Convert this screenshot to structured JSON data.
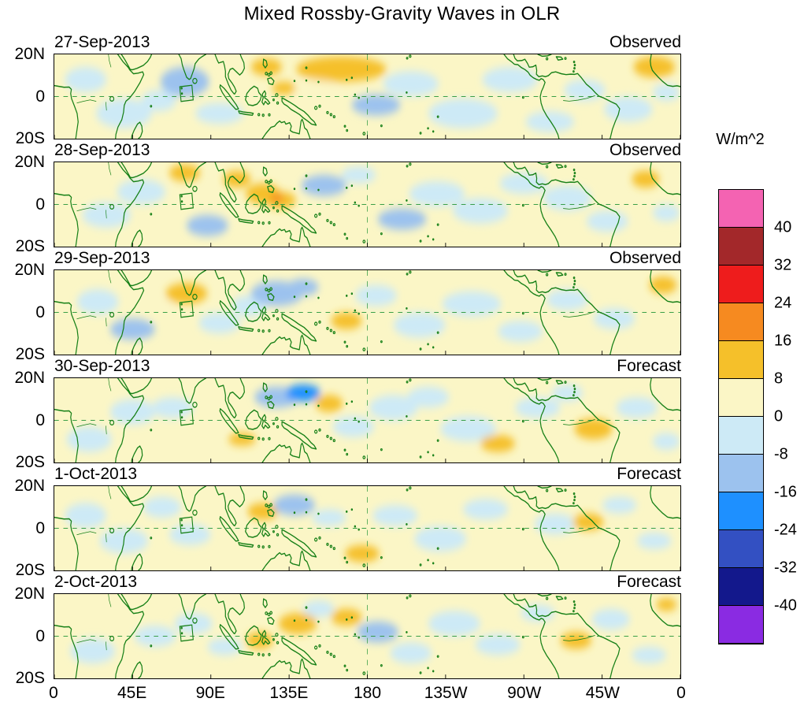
{
  "chart_data": {
    "type": "heatmap",
    "title": "Mixed Rossby-Gravity Waves in OLR",
    "units_label": "W/m^2",
    "lon_range_deg_east": [
      0,
      360
    ],
    "lat_range": [
      -20,
      20
    ],
    "x_tick_labels": [
      "0",
      "45E",
      "90E",
      "135E",
      "180",
      "135W",
      "90W",
      "45W",
      "0"
    ],
    "y_tick_labels": [
      "20N",
      "0",
      "20S"
    ],
    "contour_levels": [
      -40,
      -32,
      -24,
      -16,
      -8,
      0,
      8,
      16,
      24,
      32,
      40
    ],
    "colorbar": {
      "orientation": "vertical",
      "tick_labels_top_to_bottom": [
        "40",
        "32",
        "24",
        "16",
        "8",
        "0",
        "-8",
        "-16",
        "-24",
        "-32",
        "-40"
      ],
      "colors_top_to_bottom": [
        "#F463B2",
        "#A3282A",
        "#EE1C1C",
        "#F68A20",
        "#F5C02A",
        "#FBF6C6",
        "#CDEAF6",
        "#9CC2EE",
        "#1E90FF",
        "#3350C2",
        "#13188C",
        "#8A2BE2"
      ]
    },
    "map_colors": {
      "coastline": "#178017",
      "gridline": "#2f9a3f"
    },
    "gridlines": {
      "equator_dashed": true,
      "meridian_180_dashed": true
    },
    "region_marker_box": {
      "lon_min": 72.5,
      "lon_max": 79.5,
      "lat_min": -2,
      "lat_max": 5
    },
    "anomaly_fields_note": "anomalies = [lon_deg_east, lat_deg, radius_lon_deg, radius_lat_deg, value_W_per_m2] (approximate centers of filled-contour features)",
    "panels": [
      {
        "date": "27-Sep-2013",
        "source": "Observed",
        "anomalies": [
          [
            40,
            -8,
            16,
            7,
            -4
          ],
          [
            18,
            8,
            12,
            6,
            -4
          ],
          [
            75,
            7,
            14,
            7,
            -12
          ],
          [
            60,
            -2,
            10,
            5,
            -4
          ],
          [
            95,
            -8,
            14,
            5,
            -4
          ],
          [
            122,
            14,
            9,
            4,
            12
          ],
          [
            132,
            4,
            7,
            3,
            12
          ],
          [
            165,
            13,
            26,
            6,
            12
          ],
          [
            150,
            3,
            12,
            5,
            4
          ],
          [
            185,
            -4,
            14,
            5,
            -12
          ],
          [
            205,
            6,
            16,
            6,
            -4
          ],
          [
            235,
            -8,
            20,
            7,
            -4
          ],
          [
            262,
            8,
            16,
            6,
            -4
          ],
          [
            285,
            -12,
            14,
            5,
            -4
          ],
          [
            305,
            3,
            12,
            5,
            -4
          ],
          [
            345,
            14,
            12,
            5,
            12
          ],
          [
            330,
            -6,
            14,
            6,
            -4
          ],
          [
            352,
            2,
            8,
            4,
            -4
          ]
        ]
      },
      {
        "date": "28-Sep-2013",
        "source": "Observed",
        "anomalies": [
          [
            30,
            -5,
            14,
            6,
            -4
          ],
          [
            50,
            6,
            14,
            6,
            -4
          ],
          [
            75,
            15,
            9,
            4,
            12
          ],
          [
            88,
            -10,
            12,
            5,
            -12
          ],
          [
            105,
            12,
            8,
            4,
            12
          ],
          [
            120,
            5,
            10,
            5,
            12
          ],
          [
            130,
            2,
            9,
            4,
            12
          ],
          [
            128,
            3,
            4,
            2,
            20
          ],
          [
            155,
            9,
            13,
            5,
            -12
          ],
          [
            175,
            14,
            10,
            4,
            -4
          ],
          [
            200,
            -7,
            14,
            5,
            -12
          ],
          [
            220,
            5,
            16,
            6,
            -4
          ],
          [
            245,
            -3,
            16,
            6,
            -4
          ],
          [
            270,
            10,
            14,
            5,
            -4
          ],
          [
            295,
            3,
            14,
            6,
            -4
          ],
          [
            318,
            -8,
            12,
            5,
            -4
          ],
          [
            340,
            12,
            8,
            4,
            12
          ],
          [
            352,
            -4,
            8,
            4,
            -4
          ]
        ]
      },
      {
        "date": "29-Sep-2013",
        "source": "Observed",
        "anomalies": [
          [
            25,
            5,
            12,
            6,
            -4
          ],
          [
            45,
            -8,
            13,
            5,
            -12
          ],
          [
            60,
            2,
            9,
            4,
            4
          ],
          [
            76,
            9,
            12,
            5,
            12
          ],
          [
            95,
            -5,
            12,
            5,
            -4
          ],
          [
            112,
            3,
            10,
            5,
            -4
          ],
          [
            128,
            9,
            15,
            6,
            -12
          ],
          [
            143,
            12,
            9,
            4,
            -12
          ],
          [
            168,
            -4,
            9,
            4,
            12
          ],
          [
            185,
            8,
            12,
            5,
            -4
          ],
          [
            210,
            -6,
            15,
            6,
            -4
          ],
          [
            240,
            4,
            17,
            6,
            -4
          ],
          [
            268,
            -9,
            13,
            5,
            -4
          ],
          [
            295,
            6,
            12,
            5,
            -4
          ],
          [
            322,
            -3,
            12,
            5,
            -4
          ],
          [
            350,
            13,
            8,
            4,
            12
          ],
          [
            342,
            -13,
            9,
            4,
            4
          ]
        ]
      },
      {
        "date": "30-Sep-2013",
        "source": "Forecast",
        "anomalies": [
          [
            20,
            -9,
            13,
            6,
            -4
          ],
          [
            45,
            4,
            13,
            6,
            -4
          ],
          [
            68,
            6,
            12,
            5,
            -4
          ],
          [
            90,
            0,
            10,
            4,
            4
          ],
          [
            108,
            -9,
            8,
            3,
            12
          ],
          [
            128,
            11,
            13,
            5,
            -12
          ],
          [
            143,
            13,
            10,
            4,
            -20
          ],
          [
            158,
            8,
            8,
            4,
            12
          ],
          [
            172,
            -3,
            12,
            5,
            -4
          ],
          [
            195,
            6,
            14,
            6,
            -4
          ],
          [
            215,
            11,
            12,
            5,
            -4
          ],
          [
            238,
            -4,
            16,
            6,
            -4
          ],
          [
            255,
            -11,
            10,
            4,
            12
          ],
          [
            278,
            6,
            13,
            5,
            -4
          ],
          [
            310,
            -4,
            11,
            5,
            12
          ],
          [
            295,
            13,
            9,
            4,
            -4
          ],
          [
            335,
            6,
            12,
            5,
            -4
          ],
          [
            352,
            -10,
            8,
            4,
            -4
          ]
        ]
      },
      {
        "date": "1-Oct-2013",
        "source": "Forecast",
        "anomalies": [
          [
            18,
            6,
            12,
            6,
            -4
          ],
          [
            40,
            -6,
            14,
            6,
            -4
          ],
          [
            62,
            10,
            11,
            5,
            -4
          ],
          [
            78,
            -3,
            12,
            5,
            -4
          ],
          [
            97,
            4,
            10,
            4,
            4
          ],
          [
            120,
            8,
            9,
            4,
            12
          ],
          [
            138,
            11,
            12,
            5,
            -12
          ],
          [
            158,
            5,
            10,
            4,
            -4
          ],
          [
            177,
            -12,
            10,
            4,
            12
          ],
          [
            196,
            6,
            13,
            5,
            -4
          ],
          [
            222,
            -5,
            15,
            6,
            -4
          ],
          [
            248,
            9,
            13,
            5,
            -4
          ],
          [
            270,
            -10,
            11,
            4,
            4
          ],
          [
            288,
            2,
            12,
            5,
            -4
          ],
          [
            307,
            3,
            9,
            4,
            12
          ],
          [
            325,
            11,
            10,
            4,
            -4
          ],
          [
            345,
            -6,
            10,
            4,
            -4
          ]
        ]
      },
      {
        "date": "2-Oct-2013",
        "source": "Forecast",
        "anomalies": [
          [
            22,
            -7,
            13,
            6,
            -4
          ],
          [
            42,
            10,
            11,
            5,
            4
          ],
          [
            58,
            0,
            12,
            5,
            -4
          ],
          [
            80,
            6,
            11,
            5,
            -4
          ],
          [
            98,
            -5,
            10,
            4,
            -4
          ],
          [
            118,
            -2,
            8,
            4,
            12
          ],
          [
            140,
            6,
            11,
            5,
            12
          ],
          [
            152,
            13,
            9,
            4,
            -4
          ],
          [
            168,
            9,
            9,
            4,
            12
          ],
          [
            186,
            2,
            12,
            5,
            -12
          ],
          [
            205,
            -8,
            12,
            5,
            -4
          ],
          [
            230,
            6,
            15,
            6,
            -4
          ],
          [
            255,
            -4,
            13,
            5,
            -4
          ],
          [
            278,
            11,
            10,
            4,
            -4
          ],
          [
            300,
            -2,
            9,
            4,
            12
          ],
          [
            320,
            8,
            11,
            5,
            -4
          ],
          [
            342,
            -9,
            10,
            4,
            -4
          ],
          [
            352,
            15,
            6,
            3,
            12
          ]
        ]
      }
    ]
  }
}
